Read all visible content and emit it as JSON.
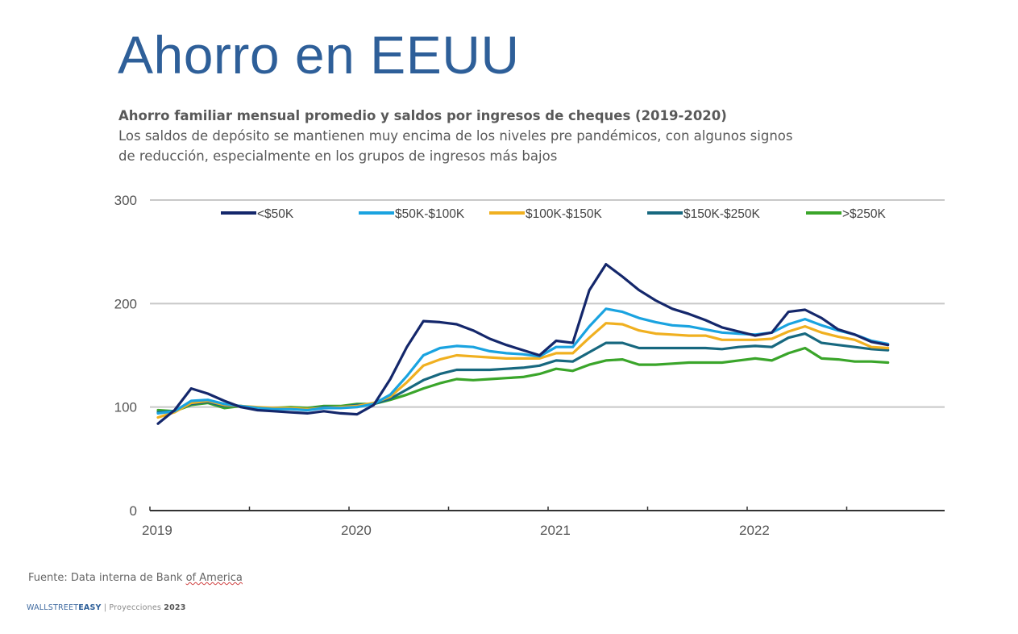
{
  "header": {
    "title": "Ahorro en EEUU",
    "subtitle_bold": "Ahorro familiar mensual promedio y saldos por ingresos de cheques (2019-2020)",
    "subtitle_line1": "Los saldos de depósito se mantienen muy encima de los niveles pre pandémicos, con algunos signos",
    "subtitle_line2": "de reducción, especialmente en los grupos de ingresos más bajos"
  },
  "footer": {
    "source_prefix": "Fuente: Data interna de Bank ",
    "source_underlined": "of America",
    "brand_wallstreet": "WALLSTREET",
    "brand_easy": "EASY",
    "brand_sep": " | ",
    "brand_proj": "Proyecciones ",
    "brand_year": "2023"
  },
  "chart_data": {
    "type": "line",
    "title": "Ahorro familiar mensual promedio y saldos por ingresos de cheques (2019-2020)",
    "xlabel": "",
    "ylabel": "",
    "ylim": [
      0,
      300
    ],
    "yticks": [
      0,
      100,
      200,
      300
    ],
    "xticks": [
      "2019",
      "2020",
      "2021",
      "2022"
    ],
    "x_start": "2019-01",
    "x_frequency": "monthly",
    "x_count": 45,
    "grid": true,
    "legend_position": "top",
    "series": [
      {
        "name": "<$50K",
        "color": "#14276b",
        "values": [
          84,
          97,
          118,
          113,
          106,
          100,
          97,
          96,
          95,
          94,
          96,
          94,
          93,
          102,
          127,
          158,
          183,
          182,
          180,
          174,
          166,
          160,
          155,
          150,
          164,
          162,
          213,
          238,
          226,
          213,
          203,
          195,
          190,
          184,
          177,
          173,
          169,
          172,
          192,
          194,
          186,
          175,
          170,
          163,
          160
        ]
      },
      {
        "name": "$50K-$100K",
        "color": "#1aa3e0",
        "values": [
          94,
          96,
          106,
          107,
          103,
          101,
          99,
          98,
          98,
          97,
          99,
          99,
          100,
          103,
          112,
          130,
          150,
          157,
          159,
          158,
          154,
          152,
          151,
          149,
          158,
          158,
          178,
          195,
          192,
          186,
          182,
          179,
          178,
          175,
          172,
          171,
          170,
          172,
          180,
          185,
          179,
          174,
          170,
          164,
          161
        ]
      },
      {
        "name": "$100K-$150K",
        "color": "#f0b020",
        "values": [
          90,
          95,
          104,
          106,
          102,
          101,
          100,
          99,
          99,
          98,
          99,
          100,
          101,
          104,
          110,
          124,
          140,
          146,
          150,
          149,
          148,
          147,
          147,
          147,
          152,
          152,
          167,
          181,
          180,
          174,
          171,
          170,
          169,
          169,
          165,
          165,
          165,
          166,
          173,
          178,
          172,
          168,
          165,
          158,
          157
        ]
      },
      {
        "name": "$150K-$250K",
        "color": "#17687f",
        "values": [
          95,
          96,
          103,
          105,
          101,
          101,
          99,
          98,
          99,
          98,
          100,
          100,
          102,
          103,
          108,
          117,
          126,
          132,
          136,
          136,
          136,
          137,
          138,
          140,
          145,
          144,
          153,
          162,
          162,
          157,
          157,
          157,
          157,
          157,
          156,
          158,
          159,
          158,
          167,
          171,
          162,
          160,
          158,
          156,
          155
        ]
      },
      {
        "name": ">$250K",
        "color": "#3aa52a",
        "values": [
          97,
          96,
          102,
          104,
          99,
          101,
          98,
          99,
          100,
          99,
          101,
          101,
          103,
          103,
          107,
          112,
          118,
          123,
          127,
          126,
          127,
          128,
          129,
          132,
          137,
          135,
          141,
          145,
          146,
          141,
          141,
          142,
          143,
          143,
          143,
          145,
          147,
          145,
          152,
          157,
          147,
          146,
          144,
          144,
          143
        ]
      }
    ]
  }
}
